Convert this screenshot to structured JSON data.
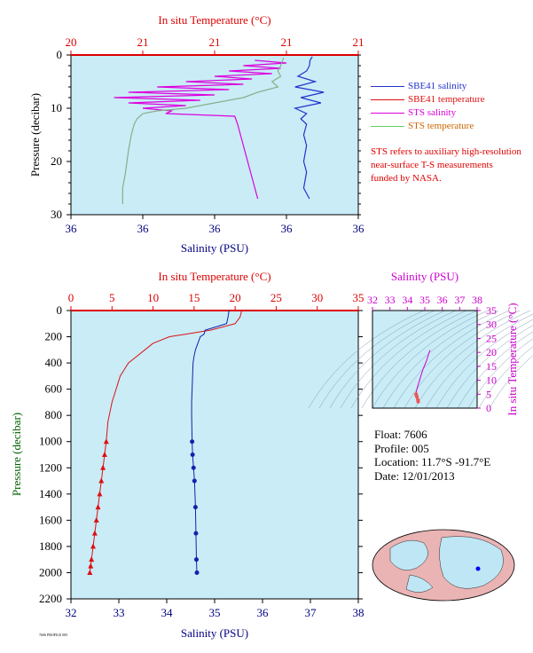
{
  "chart_data": [
    {
      "type": "line",
      "top_axis_label": "In situ Temperature (°C)",
      "top_ticks": [
        "20",
        "21",
        "21",
        "21",
        "21"
      ],
      "xlabel": "Salinity (PSU)",
      "bottom_ticks": [
        "36",
        "36",
        "36",
        "36",
        "36"
      ],
      "ylabel": "Pressure (decibar)",
      "y_ticks": [
        "0",
        "10",
        "20",
        "30"
      ],
      "ylim": [
        0,
        30
      ],
      "legend": [
        {
          "name": "SBE41 salinity",
          "color": "#2233cc"
        },
        {
          "name": "SBE41 temperature",
          "color": "#dd1111"
        },
        {
          "name": "STS salinity",
          "color": "#dd00dd"
        },
        {
          "name": "STS temperature",
          "color": "#66cc66"
        }
      ],
      "note": "STS refers to auxiliary high-resolution near-surface T-S measurements funded by NASA.",
      "series": [
        {
          "name": "SBE41 salinity",
          "axis_fraction": [
            [
              0.84,
              0.3
            ],
            [
              0.832,
              1
            ],
            [
              0.83,
              2
            ],
            [
              0.82,
              3
            ],
            [
              0.79,
              4
            ],
            [
              0.85,
              5
            ],
            [
              0.78,
              6
            ],
            [
              0.88,
              7
            ],
            [
              0.8,
              8
            ],
            [
              0.87,
              9
            ],
            [
              0.78,
              10
            ],
            [
              0.82,
              11
            ],
            [
              0.8,
              12
            ],
            [
              0.82,
              13
            ],
            [
              0.81,
              15
            ],
            [
              0.82,
              17
            ],
            [
              0.81,
              20
            ],
            [
              0.82,
              22
            ],
            [
              0.81,
              25
            ],
            [
              0.83,
              27
            ]
          ]
        },
        {
          "name": "STS salinity",
          "axis_fraction": [
            [
              0.64,
              1
            ],
            [
              0.75,
              1.5
            ],
            [
              0.6,
              2
            ],
            [
              0.73,
              2.5
            ],
            [
              0.55,
              3
            ],
            [
              0.7,
              3.5
            ],
            [
              0.5,
              4
            ],
            [
              0.63,
              4.5
            ],
            [
              0.4,
              5
            ],
            [
              0.6,
              5.5
            ],
            [
              0.3,
              6
            ],
            [
              0.55,
              6.5
            ],
            [
              0.2,
              7
            ],
            [
              0.5,
              7.5
            ],
            [
              0.15,
              8
            ],
            [
              0.45,
              8.5
            ],
            [
              0.2,
              9
            ],
            [
              0.4,
              9.5
            ],
            [
              0.25,
              10
            ],
            [
              0.35,
              10.5
            ],
            [
              0.33,
              11
            ],
            [
              0.57,
              11.5
            ],
            [
              0.58,
              13
            ],
            [
              0.59,
              15
            ],
            [
              0.6,
              17
            ],
            [
              0.61,
              19
            ],
            [
              0.62,
              21
            ],
            [
              0.63,
              23
            ],
            [
              0.64,
              25
            ],
            [
              0.65,
              27
            ]
          ]
        },
        {
          "name": "STS temperature",
          "axis_fraction": [
            [
              0.74,
              0.5
            ],
            [
              0.73,
              2
            ],
            [
              0.72,
              3
            ],
            [
              0.73,
              4
            ],
            [
              0.7,
              5
            ],
            [
              0.72,
              6
            ],
            [
              0.65,
              7
            ],
            [
              0.6,
              8
            ],
            [
              0.5,
              9
            ],
            [
              0.4,
              10
            ],
            [
              0.3,
              10.5
            ],
            [
              0.25,
              11
            ],
            [
              0.23,
              12
            ],
            [
              0.22,
              13
            ],
            [
              0.21,
              15
            ],
            [
              0.2,
              18
            ],
            [
              0.19,
              22
            ],
            [
              0.18,
              25
            ],
            [
              0.18,
              28
            ]
          ]
        }
      ]
    },
    {
      "type": "line",
      "top_axis_label": "In situ Temperature (°C)",
      "top_ticks": [
        "0",
        "5",
        "10",
        "15",
        "20",
        "25",
        "30",
        "35"
      ],
      "top_range": [
        0,
        35
      ],
      "xlabel": "Salinity (PSU)",
      "bottom_ticks": [
        "32",
        "33",
        "34",
        "35",
        "36",
        "37",
        "38"
      ],
      "xlim": [
        32,
        38
      ],
      "ylabel": "Pressure (decibar)",
      "y_ticks": [
        "0",
        "200",
        "400",
        "600",
        "800",
        "1000",
        "1200",
        "1400",
        "1600",
        "1800",
        "2000",
        "2200"
      ],
      "ylim": [
        0,
        2200
      ],
      "series": [
        {
          "name": "Temperature",
          "color": "#dd1111",
          "x": [
            20.8,
            20.6,
            20.0,
            17,
            14,
            12,
            10,
            9,
            8,
            7,
            6.5,
            6,
            5.5,
            5,
            4.5,
            4.3,
            4.1,
            3.9,
            3.7,
            3.5,
            3.3,
            3.1,
            2.9,
            2.7,
            2.5,
            2.4,
            2.3
          ],
          "y": [
            0,
            50,
            100,
            150,
            180,
            200,
            250,
            300,
            350,
            400,
            450,
            500,
            600,
            700,
            850,
            1000,
            1100,
            1200,
            1300,
            1400,
            1500,
            1600,
            1700,
            1800,
            1900,
            1950,
            2000
          ]
        },
        {
          "name": "Salinity",
          "color": "#1122aa",
          "x": [
            35.3,
            35.28,
            35.25,
            34.8,
            34.78,
            34.7,
            34.65,
            34.6,
            34.57,
            34.55,
            34.54,
            34.53,
            34.52,
            34.52,
            34.53,
            34.54,
            34.56,
            34.58,
            34.6,
            34.61,
            34.62,
            34.63
          ],
          "y": [
            0,
            50,
            100,
            150,
            180,
            200,
            250,
            300,
            350,
            400,
            500,
            600,
            700,
            800,
            1000,
            1100,
            1200,
            1300,
            1500,
            1700,
            1900,
            2000
          ]
        }
      ]
    },
    {
      "type": "scatter",
      "top_axis_label": "Salinity (PSU)",
      "top_ticks": [
        "32",
        "33",
        "34",
        "35",
        "36",
        "37",
        "38"
      ],
      "xlim": [
        32,
        38
      ],
      "right_axis_label": "In situ Temperature (°C)",
      "y_ticks": [
        "0",
        "5",
        "10",
        "15",
        "20",
        "25",
        "30",
        "35"
      ],
      "ylim": [
        0,
        35
      ],
      "series": [
        {
          "name": "T-S profile",
          "x": [
            35.3,
            35.25,
            35.1,
            34.9,
            34.8,
            34.7,
            34.65,
            34.6,
            34.55,
            34.52,
            34.5,
            34.52,
            34.55,
            34.6,
            34.62
          ],
          "y": [
            20.8,
            20,
            17,
            14,
            12,
            10,
            9,
            8,
            7,
            6,
            5,
            4.5,
            4,
            3,
            2.3
          ]
        }
      ]
    }
  ],
  "info": {
    "float": "Float:  7606",
    "profile": "Profile:  005",
    "location": "Location:  11.7°S  -91.7°E",
    "date": "Date:  12/01/2013"
  },
  "footer_id": "7606 PROFILE 005"
}
